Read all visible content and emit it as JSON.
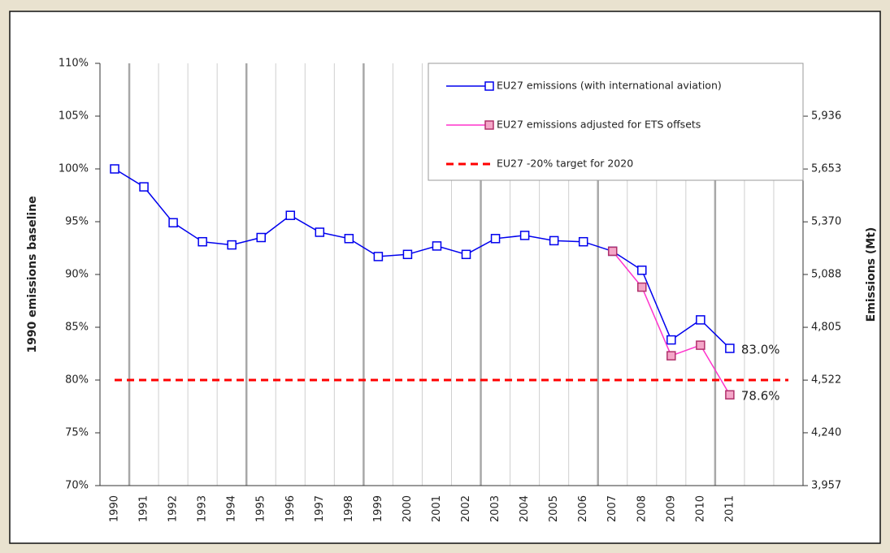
{
  "chart_data": {
    "type": "line",
    "y_label": "1990 emissions  baseline",
    "y2_label": "Emissions (Mt)",
    "categories": [
      "1990",
      "1991",
      "1992",
      "1993",
      "1994",
      "1995",
      "1996",
      "1997",
      "1998",
      "1999",
      "2000",
      "2001",
      "2002",
      "2003",
      "2004",
      "2005",
      "2006",
      "2007",
      "2008",
      "2009",
      "2010",
      "2011",
      null,
      null
    ],
    "ylim": [
      70,
      110
    ],
    "yticks": [
      {
        "value": 70,
        "label": "70%"
      },
      {
        "value": 75,
        "label": "75%"
      },
      {
        "value": 80,
        "label": "80%"
      },
      {
        "value": 85,
        "label": "85%"
      },
      {
        "value": 90,
        "label": "90%"
      },
      {
        "value": 95,
        "label": "95%"
      },
      {
        "value": 100,
        "label": "100%"
      },
      {
        "value": 105,
        "label": "105%"
      },
      {
        "value": 110,
        "label": "110%"
      }
    ],
    "y2lim": [
      3957,
      6219
    ],
    "y2ticks": [
      {
        "value": 3957,
        "label": "3,957"
      },
      {
        "value": 4240,
        "label": "4,240"
      },
      {
        "value": 4522,
        "label": "4,522"
      },
      {
        "value": 4805,
        "label": "4,805"
      },
      {
        "value": 5088,
        "label": "5,088"
      },
      {
        "value": 5370,
        "label": "5,370"
      },
      {
        "value": 5653,
        "label": "5,653"
      },
      {
        "value": 5936,
        "label": "5,936"
      }
    ],
    "legend": "upper right",
    "series": [
      {
        "name": "EU27 emissions (with international aviation)",
        "color": "#0000ee",
        "marker_fill": "#ffffff",
        "values": [
          100,
          98.3,
          94.9,
          93.1,
          92.8,
          93.5,
          95.6,
          94.0,
          93.4,
          91.7,
          91.9,
          92.7,
          91.9,
          93.4,
          93.7,
          93.2,
          93.1,
          92.2,
          90.4,
          83.8,
          85.7,
          83.0,
          null,
          null
        ],
        "value_labels": [
          null,
          null,
          null,
          null,
          null,
          null,
          null,
          null,
          null,
          null,
          null,
          null,
          null,
          null,
          null,
          null,
          null,
          null,
          null,
          null,
          null,
          "83.0%",
          null,
          null
        ]
      },
      {
        "name": "EU27 emissions adjusted for ETS offsets",
        "color": "#ff33cc",
        "marker_fill": "#f4a6c8",
        "values": [
          null,
          null,
          null,
          null,
          null,
          null,
          null,
          null,
          null,
          null,
          null,
          null,
          null,
          null,
          null,
          null,
          null,
          92.2,
          88.8,
          82.3,
          83.3,
          78.6,
          null,
          null
        ],
        "value_labels": [
          null,
          null,
          null,
          null,
          null,
          null,
          null,
          null,
          null,
          null,
          null,
          null,
          null,
          null,
          null,
          null,
          null,
          null,
          null,
          null,
          null,
          "78.6%",
          null,
          null
        ]
      },
      {
        "name": "EU27 -20% target for 2020",
        "color": "#ff0000",
        "dash": true,
        "values": [
          80,
          80,
          80,
          80,
          80,
          80,
          80,
          80,
          80,
          80,
          80,
          80,
          80,
          80,
          80,
          80,
          80,
          80,
          80,
          80,
          80,
          80,
          80,
          80
        ]
      }
    ]
  }
}
